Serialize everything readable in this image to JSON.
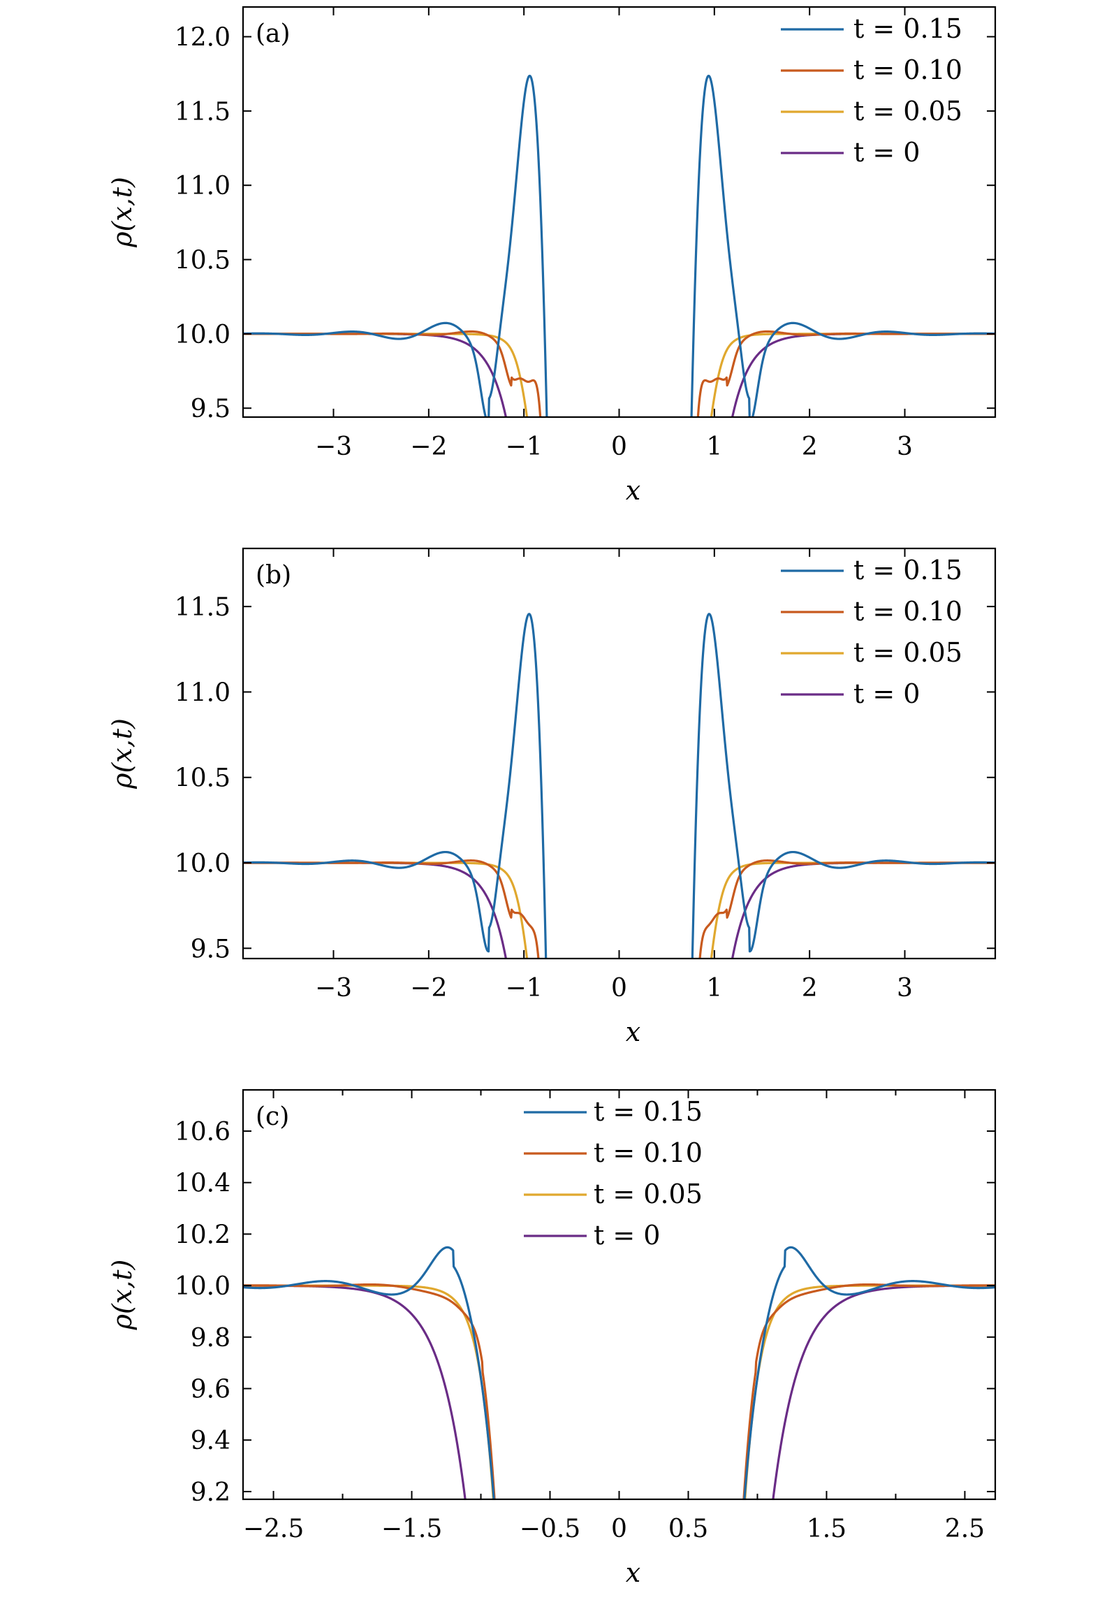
{
  "chart_data": [
    {
      "type": "line",
      "panel_label": "(a)",
      "xlabel": "x",
      "ylabel": "ρ(x,t)",
      "xlim": [
        -3.95,
        3.95
      ],
      "ylim": [
        9.44,
        12.2
      ],
      "xticks": [
        -3,
        -2,
        -1,
        0,
        1,
        2,
        3
      ],
      "xtick_labels": [
        "−3",
        "−2",
        "−1",
        "0",
        "1",
        "2",
        "3"
      ],
      "yticks": [
        9.5,
        10.0,
        10.5,
        11.0,
        11.5,
        12.0
      ],
      "ytick_labels": [
        "9.5",
        "10.0",
        "10.5",
        "11.0",
        "11.5",
        "12.0"
      ],
      "legend_position": "top-right",
      "series": [
        {
          "name": "t = 0.15",
          "color": "#1f6aa5",
          "params": {
            "A": 2.55,
            "c": 0.88,
            "w": 0.24,
            "B": -0.45,
            "d": 1.37,
            "v": 0.11,
            "k": 6.4,
            "lam": 1.6,
            "g": 0.58,
            "s": 7.5,
            "r": 0.7
          }
        },
        {
          "name": "t = 0.10",
          "color": "#c85a1e",
          "params": {
            "A": 1.15,
            "c": 0.79,
            "w": 0.13,
            "B": -0.17,
            "d": 1.13,
            "v": 0.09,
            "k": 7.0,
            "lam": 2.6,
            "g": 0.6,
            "s": 8.5,
            "r": 0.8
          }
        },
        {
          "name": "t = 0.05",
          "color": "#e0a82e",
          "params": {
            "A": 0,
            "c": 0,
            "w": 1,
            "B": -0.1,
            "d": 0.95,
            "v": 0.12,
            "k": 0,
            "lam": 0,
            "g": 0.62,
            "s": 9.5,
            "r": 0.9
          }
        },
        {
          "name": "t = 0",
          "color": "#6a2c86",
          "params": {
            "A": 0,
            "c": 0,
            "w": 1,
            "B": 0,
            "d": 0,
            "v": 1,
            "k": 0,
            "lam": 0,
            "g": 0.57,
            "s": 5.2,
            "r": 1.0
          }
        }
      ]
    },
    {
      "type": "line",
      "panel_label": "(b)",
      "xlabel": "x",
      "ylabel": "ρ(x,t)",
      "xlim": [
        -3.95,
        3.95
      ],
      "ylim": [
        9.44,
        11.84
      ],
      "xticks": [
        -3,
        -2,
        -1,
        0,
        1,
        2,
        3
      ],
      "xtick_labels": [
        "−3",
        "−2",
        "−1",
        "0",
        "1",
        "2",
        "3"
      ],
      "yticks": [
        9.5,
        10.0,
        10.5,
        11.0,
        11.5
      ],
      "ytick_labels": [
        "9.5",
        "10.0",
        "10.5",
        "11.0",
        "11.5"
      ],
      "legend_position": "top-right",
      "series": [
        {
          "name": "t = 0.15",
          "color": "#1f6aa5",
          "params": {
            "A": 2.25,
            "c": 0.88,
            "w": 0.24,
            "B": -0.39,
            "d": 1.37,
            "v": 0.11,
            "k": 6.4,
            "lam": 1.6,
            "g": 0.58,
            "s": 7.5,
            "r": 0.7
          }
        },
        {
          "name": "t = 0.10",
          "color": "#c85a1e",
          "params": {
            "A": 0.98,
            "c": 0.79,
            "w": 0.13,
            "B": -0.15,
            "d": 1.13,
            "v": 0.09,
            "k": 7.0,
            "lam": 2.6,
            "g": 0.6,
            "s": 8.5,
            "r": 0.8
          }
        },
        {
          "name": "t = 0.05",
          "color": "#e0a82e",
          "params": {
            "A": 0,
            "c": 0,
            "w": 1,
            "B": -0.1,
            "d": 0.95,
            "v": 0.12,
            "k": 0,
            "lam": 0,
            "g": 0.62,
            "s": 9.5,
            "r": 0.9
          }
        },
        {
          "name": "t = 0",
          "color": "#6a2c86",
          "params": {
            "A": 0,
            "c": 0,
            "w": 1,
            "B": 0,
            "d": 0,
            "v": 1,
            "k": 0,
            "lam": 0,
            "g": 0.57,
            "s": 5.2,
            "r": 1.0
          }
        }
      ]
    },
    {
      "type": "line",
      "panel_label": "(c)",
      "xlabel": "x",
      "ylabel": "ρ(x,t)",
      "xlim": [
        -2.72,
        2.72
      ],
      "ylim": [
        9.17,
        10.76
      ],
      "xticks": [
        -2.5,
        -1.5,
        -0.5,
        0,
        0.5,
        1.5,
        2.5
      ],
      "xtick_labels": [
        "−2.5",
        "−1.5",
        "−0.5",
        "0",
        "0.5",
        "1.5",
        "2.5"
      ],
      "x_minor_ticks": [
        -2,
        -1,
        1,
        2
      ],
      "yticks": [
        9.2,
        9.4,
        9.6,
        9.8,
        10.0,
        10.2,
        10.4,
        10.6
      ],
      "ytick_labels": [
        "9.2",
        "9.4",
        "9.6",
        "9.8",
        "10.0",
        "10.2",
        "10.4",
        "10.6"
      ],
      "legend_position": "top-center",
      "series": [
        {
          "name": "t = 0.15",
          "color": "#1f6aa5",
          "params": {
            "A": 0,
            "c": 0,
            "w": 1,
            "B": 0.17,
            "d": 1.2,
            "v": 0.2,
            "k": 6.6,
            "lam": 1.3,
            "g": 0.58,
            "s": 7.5,
            "r": 0.7
          }
        },
        {
          "name": "t = 0.10",
          "color": "#c85a1e",
          "params": {
            "A": 0,
            "c": 0,
            "w": 1,
            "B": 0.08,
            "d": 0.99,
            "v": 0.1,
            "k": 7.5,
            "lam": 2.2,
            "g": 0.6,
            "s": 8.5,
            "r": 0.8
          }
        },
        {
          "name": "t = 0.05",
          "color": "#e0a82e",
          "params": {
            "A": 0,
            "c": 0,
            "w": 1,
            "B": -0.03,
            "d": 0.9,
            "v": 0.14,
            "k": 0,
            "lam": 0,
            "g": 0.62,
            "s": 9.5,
            "r": 0.9
          }
        },
        {
          "name": "t = 0",
          "color": "#6a2c86",
          "params": {
            "A": 0,
            "c": 0,
            "w": 1,
            "B": 0,
            "d": 0,
            "v": 1,
            "k": 0,
            "lam": 0,
            "g": 0.57,
            "s": 5.2,
            "r": 1.0
          }
        }
      ]
    }
  ]
}
